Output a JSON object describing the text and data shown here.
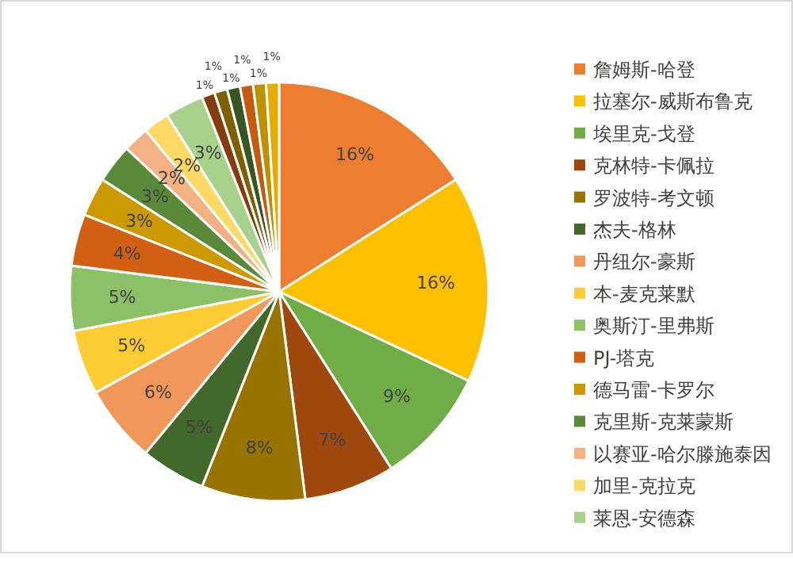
{
  "chart_data": {
    "type": "pie",
    "data_labels": true,
    "legend": "right",
    "categories": [
      "詹姆斯-哈登",
      "拉塞尔-威斯布鲁克",
      "埃里克-戈登",
      "克林特-卡佩拉",
      "罗波特-考文顿",
      "杰夫-格林",
      "丹纽尔-豪斯",
      "本-麦克莱默",
      "奥斯汀-里弗斯",
      "PJ-塔克",
      "德马雷-卡罗尔",
      "克里斯-克莱蒙斯",
      "以赛亚-哈尔滕施泰因",
      "加里-克拉克",
      "莱恩-安德森",
      null,
      null,
      null,
      null,
      null,
      null
    ],
    "values": [
      16,
      16,
      9,
      7,
      8,
      5,
      6,
      5,
      5,
      4,
      3,
      3,
      2,
      2,
      3,
      1,
      1,
      1,
      1,
      1,
      1
    ],
    "value_labels": [
      "16%",
      "16%",
      "9%",
      "7%",
      "8%",
      "5%",
      "6%",
      "5%",
      "5%",
      "4%",
      "3%",
      "3%",
      "2%",
      "2%",
      "3%",
      "1%",
      "1%",
      "1%",
      "1%",
      "1%",
      "1%"
    ],
    "colors": [
      "#ed7d31",
      "#ffc000",
      "#70ad47",
      "#9e480e",
      "#997300",
      "#43682b",
      "#f1975a",
      "#ffcd33",
      "#8cc168",
      "#d26012",
      "#cc9a00",
      "#5a8a39",
      "#f4b183",
      "#ffd966",
      "#a9d18e",
      "#843c0c",
      "#7f6000",
      "#375623",
      "#c55a11",
      "#bf9000",
      "#e6ad00"
    ]
  }
}
